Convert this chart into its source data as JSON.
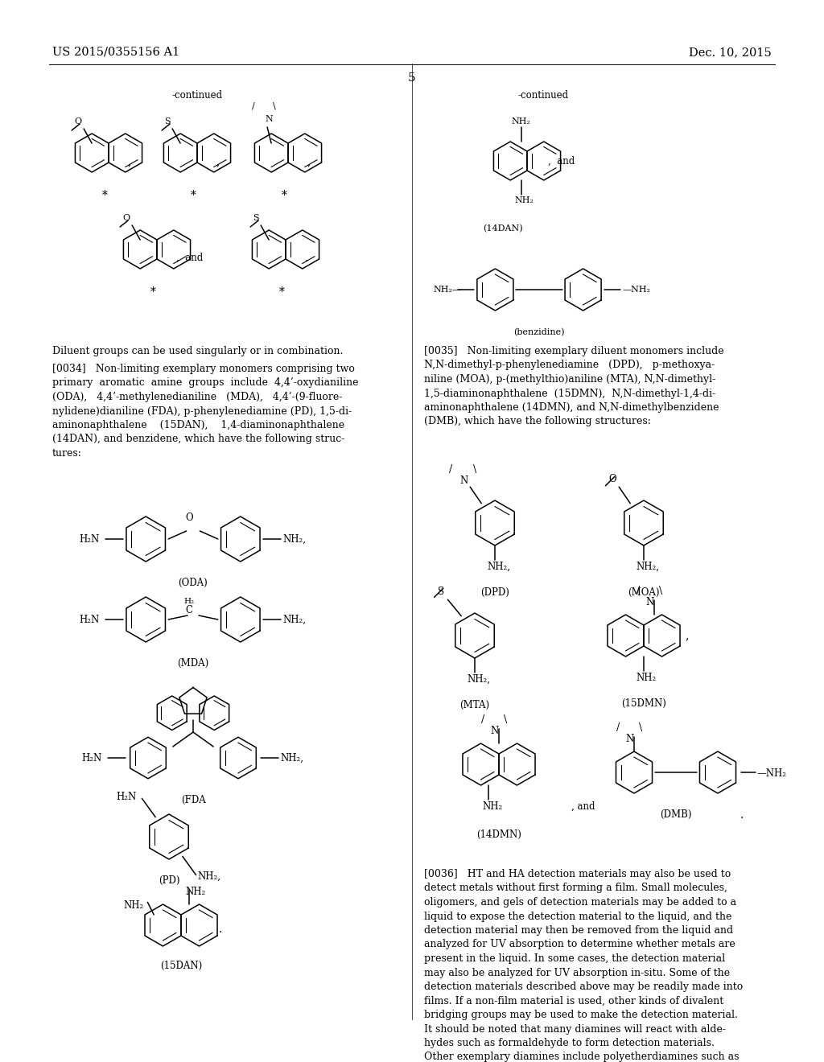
{
  "bg": "#ffffff",
  "header_left": "US 2015/0355156 A1",
  "header_right": "Dec. 10, 2015",
  "page_num": "5",
  "para0034": "[0034]   Non-limiting exemplary monomers comprising two\nprimary  aromatic  amine  groups  include  4,4’-oxydianiline\n(ODA),   4,4’-methylenedianiline   (MDA),   4,4’-(9-fluore-\nnylidene)dianiline (FDA), p-phenylenediamine (PD), 1,5-di-\naminonaphthalene    (15DAN),    1,4-diaminonaphthalene\n(14DAN), and benzidene, which have the following struc-\ntures:",
  "para0035": "[0035]   Non-limiting exemplary diluent monomers include\nN,N-dimethyl-p-phenylenediamine   (DPD),   p-methoxya-\nniline (MOA), p-(methylthio)aniline (MTA), N,N-dimethyl-\n1,5-diaminonaphthalene  (15DMN),  N,N-dimethyl-1,4-di-\naminonaphthalene (14DMN), and N,N-dimethylbenzidene\n(DMB), which have the following structures:",
  "para0036": "[0036]   HT and HA detection materials may also be used to\ndetect metals without first forming a film. Small molecules,\noligomers, and gels of detection materials may be added to a\nliquid to expose the detection material to the liquid, and the\ndetection material may then be removed from the liquid and\nanalyzed for UV absorption to determine whether metals are\npresent in the liquid. In some cases, the detection material\nmay also be analyzed for UV absorption in-situ. Some of the\ndetection materials described above may be readily made into\nfilms. If a non-film material is used, other kinds of divalent\nbridging groups may be used to make the detection material.\nIt should be noted that many diamines will react with alde-\nhydes such as formaldehyde to form detection materials.\nOther exemplary diamines include polyetherdiamines such as",
  "diluent_line": "Diluent groups can be used singularly or in combination."
}
